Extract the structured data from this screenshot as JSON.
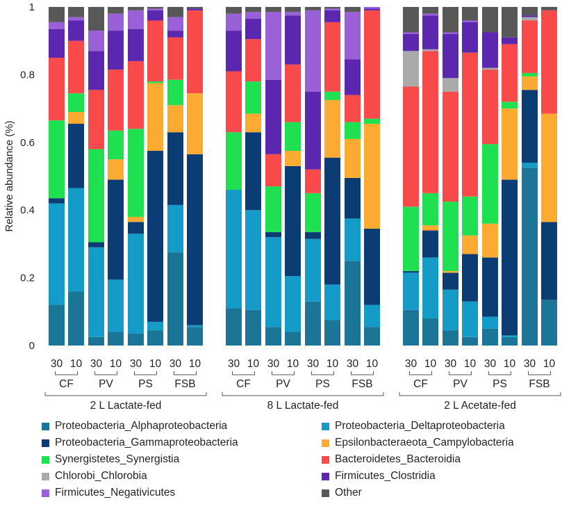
{
  "chart_data": {
    "type": "bar",
    "stacked": true,
    "title": "",
    "ylabel": "Relative abundance (%)",
    "ylim": [
      0,
      1
    ],
    "yticks": [
      "0",
      "0.2",
      "0.4",
      "0.6",
      "0.8",
      "1"
    ],
    "yticks_values": [
      0,
      0.2,
      0.4,
      0.6,
      0.8,
      1
    ],
    "legend_position": "bottom",
    "taxa": [
      {
        "name": "Proteobacteria_Alphaproteobacteria",
        "color": "#1b7596"
      },
      {
        "name": "Proteobacteria_Deltaproteobacteria",
        "color": "#159bc8"
      },
      {
        "name": "Proteobacteria_Gammaproteobacteria",
        "color": "#0b3d74"
      },
      {
        "name": "Epsilonbacteraeota_Campylobacteria",
        "color": "#fbaa32"
      },
      {
        "name": "Synergistetes_Synergistia",
        "color": "#1ee050"
      },
      {
        "name": "Bacteroidetes_Bacteroidia",
        "color": "#f84a4a"
      },
      {
        "name": "Chlorobi_Chlorobia",
        "color": "#aaaaaa"
      },
      {
        "name": "Firmicutes_Clostridia",
        "color": "#5b27af"
      },
      {
        "name": "Firmicutes_Negativicutes",
        "color": "#9a60d8"
      },
      {
        "name": "Other",
        "color": "#585858"
      }
    ],
    "groups": [
      {
        "name": "2 L Lactate-fed",
        "reactors": [
          {
            "name": "CF",
            "bars": [
              {
                "label": "30",
                "values": [
                  0.12,
                  0.3,
                  0.015,
                  0,
                  0.23,
                  0.185,
                  0,
                  0.085,
                  0.02,
                  0.045
                ]
              },
              {
                "label": "10",
                "values": [
                  0.16,
                  0.305,
                  0.19,
                  0.035,
                  0.055,
                  0.155,
                  0,
                  0.06,
                  0.01,
                  0.03
                ]
              }
            ]
          },
          {
            "name": "PV",
            "bars": [
              {
                "label": "30",
                "values": [
                  0.025,
                  0.265,
                  0.015,
                  0,
                  0.275,
                  0.175,
                  0,
                  0.115,
                  0.06,
                  0.07
                ]
              },
              {
                "label": "10",
                "values": [
                  0.04,
                  0.155,
                  0.295,
                  0.06,
                  0.085,
                  0.18,
                  0,
                  0.115,
                  0.05,
                  0.02
                ]
              }
            ]
          },
          {
            "name": "PS",
            "bars": [
              {
                "label": "30",
                "values": [
                  0.035,
                  0.295,
                  0.035,
                  0.015,
                  0.26,
                  0.2,
                  0,
                  0.095,
                  0.055,
                  0.01
                ]
              },
              {
                "label": "10",
                "values": [
                  0.045,
                  0.025,
                  0.505,
                  0.2,
                  0.005,
                  0.18,
                  0,
                  0.03,
                  0.005,
                  0.005
                ]
              }
            ]
          },
          {
            "name": "FSB",
            "bars": [
              {
                "label": "30",
                "values": [
                  0.275,
                  0.14,
                  0.215,
                  0.08,
                  0.075,
                  0.125,
                  0,
                  0.02,
                  0.04,
                  0.03
                ]
              },
              {
                "label": "10",
                "values": [
                  0.055,
                  0.005,
                  0.505,
                  0.18,
                  0,
                  0.245,
                  0,
                  0.005,
                  0,
                  0.005
                ]
              }
            ]
          }
        ]
      },
      {
        "name": "8 L Lactate-fed",
        "reactors": [
          {
            "name": "CF",
            "bars": [
              {
                "label": "30",
                "values": [
                  0.11,
                  0.35,
                  0,
                  0,
                  0.17,
                  0.18,
                  0,
                  0.12,
                  0.05,
                  0.02
                ]
              },
              {
                "label": "10",
                "values": [
                  0.105,
                  0.295,
                  0.23,
                  0.055,
                  0.095,
                  0.125,
                  0,
                  0.06,
                  0.02,
                  0.015
                ]
              }
            ]
          },
          {
            "name": "PV",
            "bars": [
              {
                "label": "30",
                "values": [
                  0.055,
                  0.265,
                  0.015,
                  0,
                  0.135,
                  0.095,
                  0,
                  0.22,
                  0.2,
                  0.015
                ]
              },
              {
                "label": "10",
                "values": [
                  0.04,
                  0.165,
                  0.325,
                  0.045,
                  0.085,
                  0.17,
                  0,
                  0.145,
                  0.01,
                  0.015
                ]
              }
            ]
          },
          {
            "name": "PS",
            "bars": [
              {
                "label": "30",
                "values": [
                  0.13,
                  0.185,
                  0.02,
                  0,
                  0.115,
                  0.07,
                  0,
                  0.23,
                  0.24,
                  0.01
                ]
              },
              {
                "label": "10",
                "values": [
                  0.075,
                  0.105,
                  0.375,
                  0.17,
                  0.025,
                  0.205,
                  0,
                  0.035,
                  0.005,
                  0.005
                ]
              }
            ]
          },
          {
            "name": "FSB",
            "bars": [
              {
                "label": "30",
                "values": [
                  0.25,
                  0.125,
                  0.12,
                  0.115,
                  0.05,
                  0.08,
                  0,
                  0.105,
                  0.14,
                  0.015
                ]
              },
              {
                "label": "10",
                "values": [
                  0.055,
                  0.065,
                  0.225,
                  0.31,
                  0.015,
                  0.32,
                  0,
                  0.005,
                  0.005,
                  0
                ]
              }
            ]
          }
        ]
      },
      {
        "name": "2 L Acetate-fed",
        "reactors": [
          {
            "name": "CF",
            "bars": [
              {
                "label": "30",
                "values": [
                  0.105,
                  0.11,
                  0.005,
                  0,
                  0.19,
                  0.355,
                  0.105,
                  0.05,
                  0.005,
                  0.075
                ]
              },
              {
                "label": "10",
                "values": [
                  0.08,
                  0.18,
                  0.08,
                  0.015,
                  0.095,
                  0.42,
                  0.005,
                  0.1,
                  0.005,
                  0.02
                ]
              }
            ]
          },
          {
            "name": "PV",
            "bars": [
              {
                "label": "30",
                "values": [
                  0.045,
                  0.12,
                  0.05,
                  0.005,
                  0.205,
                  0.325,
                  0.04,
                  0.13,
                  0.005,
                  0.075
                ]
              },
              {
                "label": "10",
                "values": [
                  0.025,
                  0.105,
                  0.14,
                  0.055,
                  0.115,
                  0.425,
                  0,
                  0.09,
                  0.005,
                  0.04
                ]
              }
            ]
          },
          {
            "name": "PS",
            "bars": [
              {
                "label": "30",
                "values": [
                  0.05,
                  0.035,
                  0.175,
                  0.1,
                  0.235,
                  0.22,
                  0.005,
                  0.105,
                  0,
                  0.075
                ]
              },
              {
                "label": "10",
                "values": [
                  0.025,
                  0.005,
                  0.46,
                  0.21,
                  0.02,
                  0.17,
                  0,
                  0.02,
                  0,
                  0.09
                ]
              }
            ]
          },
          {
            "name": "FSB",
            "bars": [
              {
                "label": "30",
                "values": [
                  0.525,
                  0.015,
                  0.215,
                  0.04,
                  0.01,
                  0.155,
                  0.01,
                  0.005,
                  0,
                  0.025
                ]
              },
              {
                "label": "10",
                "values": [
                  0.135,
                  0,
                  0.23,
                  0.32,
                  0,
                  0.305,
                  0,
                  0,
                  0,
                  0.01
                ]
              }
            ]
          }
        ]
      }
    ]
  }
}
